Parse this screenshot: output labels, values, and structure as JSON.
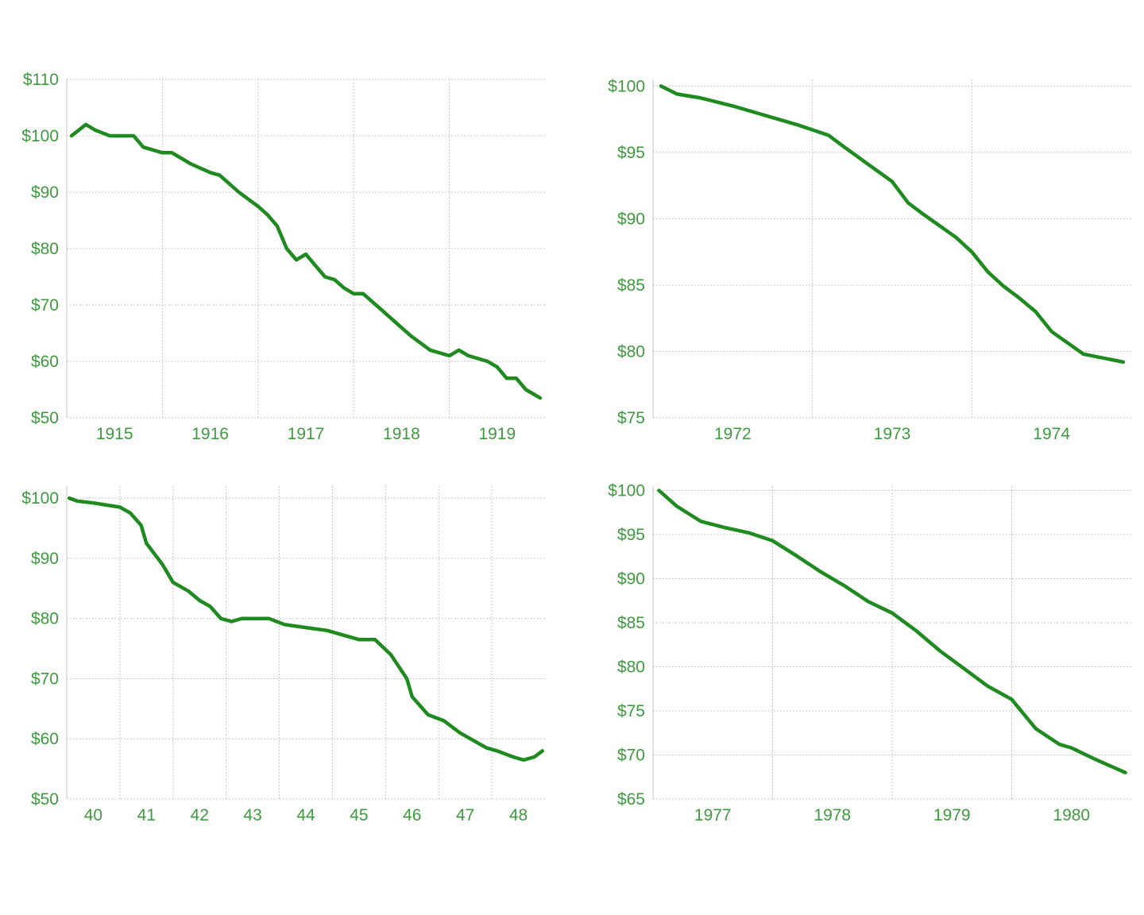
{
  "colors": {
    "line": "#1f8a1f",
    "label": "#3f9a3f",
    "grid": "#c8c8c8"
  },
  "chart_data": [
    {
      "type": "line",
      "ylim": [
        50,
        110
      ],
      "xlim": [
        1914.5,
        1919.5
      ],
      "yticks": [
        110,
        100,
        90,
        80,
        70,
        60,
        50
      ],
      "ytick_labels": [
        "$110",
        "$100",
        "$90",
        "$80",
        "$70",
        "$60",
        "$50"
      ],
      "xgrid": [
        1915.5,
        1916.5,
        1917.5,
        1918.5
      ],
      "xticks": [
        1915,
        1916,
        1917,
        1918,
        1919
      ],
      "xtick_labels": [
        "1915",
        "1916",
        "1917",
        "1918",
        "1919"
      ],
      "grid": true,
      "series": [
        {
          "x": [
            1914.55,
            1914.7,
            1914.8,
            1914.95,
            1915.0,
            1915.2,
            1915.3,
            1915.5,
            1915.6,
            1915.8,
            1916.0,
            1916.1,
            1916.3,
            1916.5,
            1916.6,
            1916.7,
            1916.8,
            1916.9,
            1917.0,
            1917.1,
            1917.2,
            1917.3,
            1917.4,
            1917.5,
            1917.6,
            1917.8,
            1918.0,
            1918.1,
            1918.3,
            1918.5,
            1918.6,
            1918.7,
            1918.9,
            1919.0,
            1919.1,
            1919.2,
            1919.3,
            1919.45
          ],
          "y": [
            100,
            102,
            101,
            100,
            100,
            100,
            98,
            97,
            97,
            95,
            93.5,
            93,
            90,
            87.5,
            86,
            84,
            80,
            78,
            79,
            77,
            75,
            74.5,
            73,
            72,
            72,
            69,
            66,
            64.5,
            62,
            61,
            62,
            61,
            60,
            59,
            57,
            57,
            55,
            53.5
          ]
        }
      ]
    },
    {
      "type": "line",
      "ylim": [
        75,
        100.5
      ],
      "xlim": [
        1971.5,
        1974.5
      ],
      "yticks": [
        100,
        95,
        90,
        85,
        80,
        75
      ],
      "ytick_labels": [
        "$100",
        "$95",
        "$90",
        "$85",
        "$80",
        "$75"
      ],
      "xgrid": [
        1972.5,
        1973.5
      ],
      "xticks": [
        1972,
        1973,
        1974
      ],
      "xtick_labels": [
        "1972",
        "1973",
        "1974"
      ],
      "grid": true,
      "series": [
        {
          "x": [
            1971.55,
            1971.65,
            1971.8,
            1972.0,
            1972.2,
            1972.4,
            1972.5,
            1972.6,
            1972.7,
            1972.85,
            1973.0,
            1973.1,
            1973.2,
            1973.4,
            1973.5,
            1973.6,
            1973.7,
            1973.8,
            1973.9,
            1974.0,
            1974.2,
            1974.45
          ],
          "y": [
            100,
            99.4,
            99.1,
            98.5,
            97.8,
            97.1,
            96.7,
            96.3,
            95.4,
            94.1,
            92.8,
            91.2,
            90.3,
            88.6,
            87.5,
            86,
            84.9,
            84,
            83,
            81.5,
            79.8,
            79.2
          ]
        }
      ]
    },
    {
      "type": "line",
      "ylim": [
        50,
        102
      ],
      "xlim": [
        39.5,
        48.5
      ],
      "yticks": [
        100,
        90,
        80,
        70,
        60,
        50
      ],
      "ytick_labels": [
        "$100",
        "$90",
        "$80",
        "$70",
        "$60",
        "$50"
      ],
      "xgrid": [
        40.5,
        41.5,
        42.5,
        43.5,
        44.5,
        45.5,
        46.5,
        47.5
      ],
      "xticks": [
        40,
        41,
        42,
        43,
        44,
        45,
        46,
        47,
        48
      ],
      "xtick_labels": [
        "40",
        "41",
        "42",
        "43",
        "44",
        "45",
        "46",
        "47",
        "48"
      ],
      "grid": true,
      "series": [
        {
          "x": [
            39.55,
            39.7,
            40.0,
            40.5,
            40.7,
            40.9,
            41.0,
            41.3,
            41.5,
            41.8,
            42.0,
            42.2,
            42.4,
            42.6,
            42.8,
            43.0,
            43.3,
            43.6,
            44.0,
            44.4,
            44.8,
            45.0,
            45.3,
            45.6,
            45.9,
            46.0,
            46.3,
            46.6,
            46.9,
            47.2,
            47.4,
            47.6,
            47.9,
            48.1,
            48.3,
            48.45
          ],
          "y": [
            100,
            99.5,
            99.2,
            98.5,
            97.5,
            95.5,
            92.5,
            89,
            86,
            84.5,
            83,
            82,
            80,
            79.5,
            80,
            80,
            80,
            79,
            78.5,
            78,
            77,
            76.5,
            76.5,
            74,
            70,
            67,
            64,
            63,
            61,
            59.5,
            58.5,
            58,
            57,
            56.5,
            57,
            58
          ]
        }
      ]
    },
    {
      "type": "line",
      "ylim": [
        65,
        100.5
      ],
      "xlim": [
        1976.5,
        1980.5
      ],
      "yticks": [
        100,
        95,
        90,
        85,
        80,
        75,
        70,
        65
      ],
      "ytick_labels": [
        "$100",
        "$95",
        "$90",
        "$85",
        "$80",
        "$75",
        "$70",
        "$65"
      ],
      "xgrid": [
        1977.5,
        1978.5,
        1979.5
      ],
      "xticks": [
        1977,
        1978,
        1979,
        1980
      ],
      "xtick_labels": [
        "1977",
        "1978",
        "1979",
        "1980"
      ],
      "grid": true,
      "series": [
        {
          "x": [
            1976.55,
            1976.7,
            1976.9,
            1977.1,
            1977.3,
            1977.5,
            1977.7,
            1977.9,
            1978.1,
            1978.3,
            1978.5,
            1978.7,
            1978.9,
            1979.1,
            1979.3,
            1979.5,
            1979.7,
            1979.9,
            1980.0,
            1980.2,
            1980.45
          ],
          "y": [
            100,
            98.2,
            96.5,
            95.8,
            95.2,
            94.3,
            92.6,
            90.8,
            89.2,
            87.4,
            86.1,
            84.1,
            81.8,
            79.8,
            77.8,
            76.3,
            73,
            71.2,
            70.8,
            69.5,
            68
          ]
        }
      ]
    }
  ]
}
